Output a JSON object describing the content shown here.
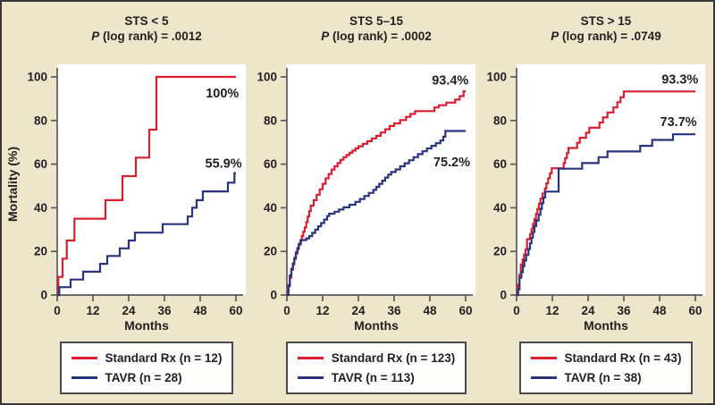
{
  "figure": {
    "background": "#EDE6CB",
    "plot_bg": "#FFFFFF",
    "border_color": "#3A3733",
    "axis_color": "#59595B",
    "text_color": "#231F20",
    "ylabel": "Mortality (%)"
  },
  "chart_data": [
    {
      "type": "line",
      "subtype": "kaplan-meier-step",
      "title": "STS < 5",
      "p_symbol": "P",
      "p_value_text": " (log rank) = .0012",
      "xlabel": "Months",
      "ylabel": "Mortality (%)",
      "xlim": [
        0,
        60
      ],
      "ylim": [
        0,
        100
      ],
      "x_ticks": [
        0,
        12,
        24,
        36,
        48,
        60
      ],
      "y_ticks": [
        0,
        20,
        40,
        60,
        80,
        100
      ],
      "grid": false,
      "legend_position": "bottom",
      "annotations": [
        {
          "text": "100%",
          "x": 61,
          "y": 90.5
        },
        {
          "text": "55.9%",
          "x": 62,
          "y": 58.5
        }
      ],
      "series": [
        {
          "name": "Standard Rx (n = 12)",
          "color": "#D91F2E",
          "final_value_pct": 100,
          "points": [
            [
              0,
              0
            ],
            [
              0.4,
              8.3
            ],
            [
              1.8,
              16.7
            ],
            [
              3.2,
              25
            ],
            [
              5.8,
              35
            ],
            [
              16.2,
              43.5
            ],
            [
              21.9,
              54.5
            ],
            [
              26.4,
              63
            ],
            [
              30.9,
              75.8
            ],
            [
              33.3,
              100
            ],
            [
              60,
              100
            ]
          ]
        },
        {
          "name": "TAVR (n = 28)",
          "color": "#293480",
          "final_value_pct": 55.9,
          "points": [
            [
              0,
              0
            ],
            [
              0.7,
              3.6
            ],
            [
              4.5,
              7.1
            ],
            [
              8.7,
              10.7
            ],
            [
              14.4,
              14.3
            ],
            [
              16.8,
              17.9
            ],
            [
              21,
              21.4
            ],
            [
              24,
              25
            ],
            [
              26.1,
              28.6
            ],
            [
              35.4,
              32.5
            ],
            [
              43.8,
              36
            ],
            [
              45.3,
              40
            ],
            [
              46.8,
              43.5
            ],
            [
              48.9,
              47.5
            ],
            [
              57.3,
              51.5
            ],
            [
              59.5,
              55.9
            ],
            [
              60,
              55.9
            ]
          ]
        }
      ]
    },
    {
      "type": "line",
      "subtype": "kaplan-meier-step",
      "title": "STS 5–15",
      "p_symbol": "P",
      "p_value_text": " (log rank) = .0002",
      "xlabel": "Months",
      "ylabel": "Mortality (%)",
      "xlim": [
        0,
        60
      ],
      "ylim": [
        0,
        100
      ],
      "x_ticks": [
        0,
        12,
        24,
        36,
        48,
        60
      ],
      "y_ticks": [
        0,
        20,
        40,
        60,
        80,
        100
      ],
      "grid": false,
      "legend_position": "bottom",
      "annotations": [
        {
          "text": "93.4%",
          "x": 61,
          "y": 96.5
        },
        {
          "text": "75.2%",
          "x": 61.5,
          "y": 59
        }
      ],
      "series": [
        {
          "name": "Standard Rx (n = 123)",
          "color": "#D91F2E",
          "final_value_pct": 93.4,
          "points": [
            [
              0,
              0
            ],
            [
              0.5,
              4
            ],
            [
              1,
              8
            ],
            [
              1.5,
              11.5
            ],
            [
              2,
              14
            ],
            [
              2.5,
              16.5
            ],
            [
              3,
              19
            ],
            [
              3.5,
              21
            ],
            [
              4,
              23
            ],
            [
              4.5,
              25
            ],
            [
              5,
              27
            ],
            [
              5.5,
              29
            ],
            [
              6,
              31
            ],
            [
              6.5,
              33.5
            ],
            [
              7,
              36
            ],
            [
              7.5,
              38.5
            ],
            [
              8,
              41
            ],
            [
              9,
              43.5
            ],
            [
              10,
              46
            ],
            [
              11,
              48.5
            ],
            [
              12,
              51
            ],
            [
              13,
              53.5
            ],
            [
              14,
              55.5
            ],
            [
              15,
              57.5
            ],
            [
              16,
              59
            ],
            [
              17,
              60.5
            ],
            [
              18,
              62
            ],
            [
              19,
              63.2
            ],
            [
              20,
              64.2
            ],
            [
              21,
              65.2
            ],
            [
              22,
              66.2
            ],
            [
              23,
              67.2
            ],
            [
              24,
              68.2
            ],
            [
              25.5,
              69.3
            ],
            [
              27,
              70.5
            ],
            [
              28.5,
              71.8
            ],
            [
              30,
              73
            ],
            [
              31.5,
              74.5
            ],
            [
              33,
              76
            ],
            [
              34.5,
              77.5
            ],
            [
              36,
              78.7
            ],
            [
              38,
              80.2
            ],
            [
              40,
              81.7
            ],
            [
              41.5,
              83
            ],
            [
              43,
              84.3
            ],
            [
              49.5,
              86
            ],
            [
              51,
              87
            ],
            [
              53.5,
              88.2
            ],
            [
              56.5,
              89.6
            ],
            [
              58,
              91.2
            ],
            [
              59.3,
              93.4
            ],
            [
              60,
              93.4
            ]
          ]
        },
        {
          "name": "TAVR (n = 113)",
          "color": "#293480",
          "final_value_pct": 75.2,
          "points": [
            [
              0,
              0
            ],
            [
              0.5,
              4.5
            ],
            [
              1,
              9
            ],
            [
              1.5,
              12
            ],
            [
              2,
              14.5
            ],
            [
              2.5,
              17
            ],
            [
              3,
              19.5
            ],
            [
              3.5,
              21.5
            ],
            [
              4,
              23.5
            ],
            [
              4.7,
              25.2
            ],
            [
              6.5,
              26
            ],
            [
              7.5,
              27
            ],
            [
              8.5,
              28.5
            ],
            [
              9.5,
              30
            ],
            [
              10.5,
              31.5
            ],
            [
              11.5,
              33
            ],
            [
              12.5,
              34.6
            ],
            [
              13.5,
              36.2
            ],
            [
              14.2,
              37.3
            ],
            [
              16,
              38.2
            ],
            [
              17.5,
              39.2
            ],
            [
              19,
              40.2
            ],
            [
              21,
              41.4
            ],
            [
              23,
              42.7
            ],
            [
              24.5,
              44
            ],
            [
              26,
              45.4
            ],
            [
              27.5,
              46.8
            ],
            [
              29,
              48.2
            ],
            [
              30,
              49.6
            ],
            [
              31,
              51
            ],
            [
              32,
              52.4
            ],
            [
              33,
              53.8
            ],
            [
              34,
              55.2
            ],
            [
              35,
              56.4
            ],
            [
              36.5,
              57.6
            ],
            [
              38,
              59
            ],
            [
              39.5,
              60.4
            ],
            [
              41,
              61.8
            ],
            [
              42.5,
              63.2
            ],
            [
              44,
              64.6
            ],
            [
              45.5,
              65.9
            ],
            [
              47,
              67.2
            ],
            [
              48.5,
              68.4
            ],
            [
              50,
              69.6
            ],
            [
              51.5,
              70.8
            ],
            [
              52.5,
              72.6
            ],
            [
              53.2,
              75.2
            ],
            [
              60,
              75.2
            ]
          ]
        }
      ]
    },
    {
      "type": "line",
      "subtype": "kaplan-meier-step",
      "title": "STS > 15",
      "p_symbol": "P",
      "p_value_text": " (log rank) = .0749",
      "xlabel": "Months",
      "ylabel": "Mortality (%)",
      "xlim": [
        0,
        60
      ],
      "ylim": [
        0,
        100
      ],
      "x_ticks": [
        0,
        12,
        24,
        36,
        48,
        60
      ],
      "y_ticks": [
        0,
        20,
        40,
        60,
        80,
        100
      ],
      "grid": false,
      "legend_position": "bottom",
      "annotations": [
        {
          "text": "93.3%",
          "x": 61,
          "y": 97
        },
        {
          "text": "73.7%",
          "x": 60.5,
          "y": 77.5
        }
      ],
      "series": [
        {
          "name": "Standard Rx (n = 43)",
          "color": "#D91F2E",
          "final_value_pct": 93.3,
          "points": [
            [
              0,
              0
            ],
            [
              0.4,
              4.7
            ],
            [
              0.9,
              9.3
            ],
            [
              1.4,
              14
            ],
            [
              2,
              16.3
            ],
            [
              2.5,
              18.6
            ],
            [
              3,
              20.9
            ],
            [
              3.5,
              25.6
            ],
            [
              4.5,
              27.9
            ],
            [
              5,
              30.2
            ],
            [
              5.5,
              32.6
            ],
            [
              6,
              34.9
            ],
            [
              6.5,
              37.2
            ],
            [
              7,
              39.5
            ],
            [
              7.5,
              41.9
            ],
            [
              8,
              44.2
            ],
            [
              8.7,
              46.5
            ],
            [
              9.5,
              48.8
            ],
            [
              10,
              51.2
            ],
            [
              10.6,
              53.5
            ],
            [
              11.2,
              55.8
            ],
            [
              11.8,
              58.1
            ],
            [
              15.8,
              60.5
            ],
            [
              16.3,
              62.8
            ],
            [
              16.9,
              65.1
            ],
            [
              17.4,
              67.4
            ],
            [
              20.3,
              69.8
            ],
            [
              21.2,
              72.1
            ],
            [
              23.3,
              74.4
            ],
            [
              24.4,
              76.7
            ],
            [
              27.8,
              79.1
            ],
            [
              29,
              81.4
            ],
            [
              30.5,
              83.7
            ],
            [
              32.5,
              86
            ],
            [
              33.8,
              88.4
            ],
            [
              34.9,
              90.7
            ],
            [
              36,
              93.3
            ],
            [
              60,
              93.3
            ]
          ]
        },
        {
          "name": "TAVR (n = 38)",
          "color": "#293480",
          "final_value_pct": 73.7,
          "points": [
            [
              0,
              0
            ],
            [
              0.5,
              2.6
            ],
            [
              1,
              7.9
            ],
            [
              1.6,
              10.5
            ],
            [
              2.1,
              13.2
            ],
            [
              2.6,
              15.8
            ],
            [
              3.2,
              18.4
            ],
            [
              4,
              21.1
            ],
            [
              4.5,
              23.7
            ],
            [
              5,
              26.3
            ],
            [
              5.5,
              28.9
            ],
            [
              6,
              31.6
            ],
            [
              6.6,
              34.2
            ],
            [
              7.4,
              36.8
            ],
            [
              8,
              39.5
            ],
            [
              8.5,
              42.1
            ],
            [
              9,
              44.7
            ],
            [
              9.6,
              47.4
            ],
            [
              14.1,
              57.9
            ],
            [
              22,
              60.5
            ],
            [
              27.5,
              63.2
            ],
            [
              30.5,
              65.8
            ],
            [
              41.5,
              68.4
            ],
            [
              45.5,
              71.1
            ],
            [
              52.5,
              73.7
            ],
            [
              60,
              73.7
            ]
          ]
        }
      ]
    }
  ]
}
